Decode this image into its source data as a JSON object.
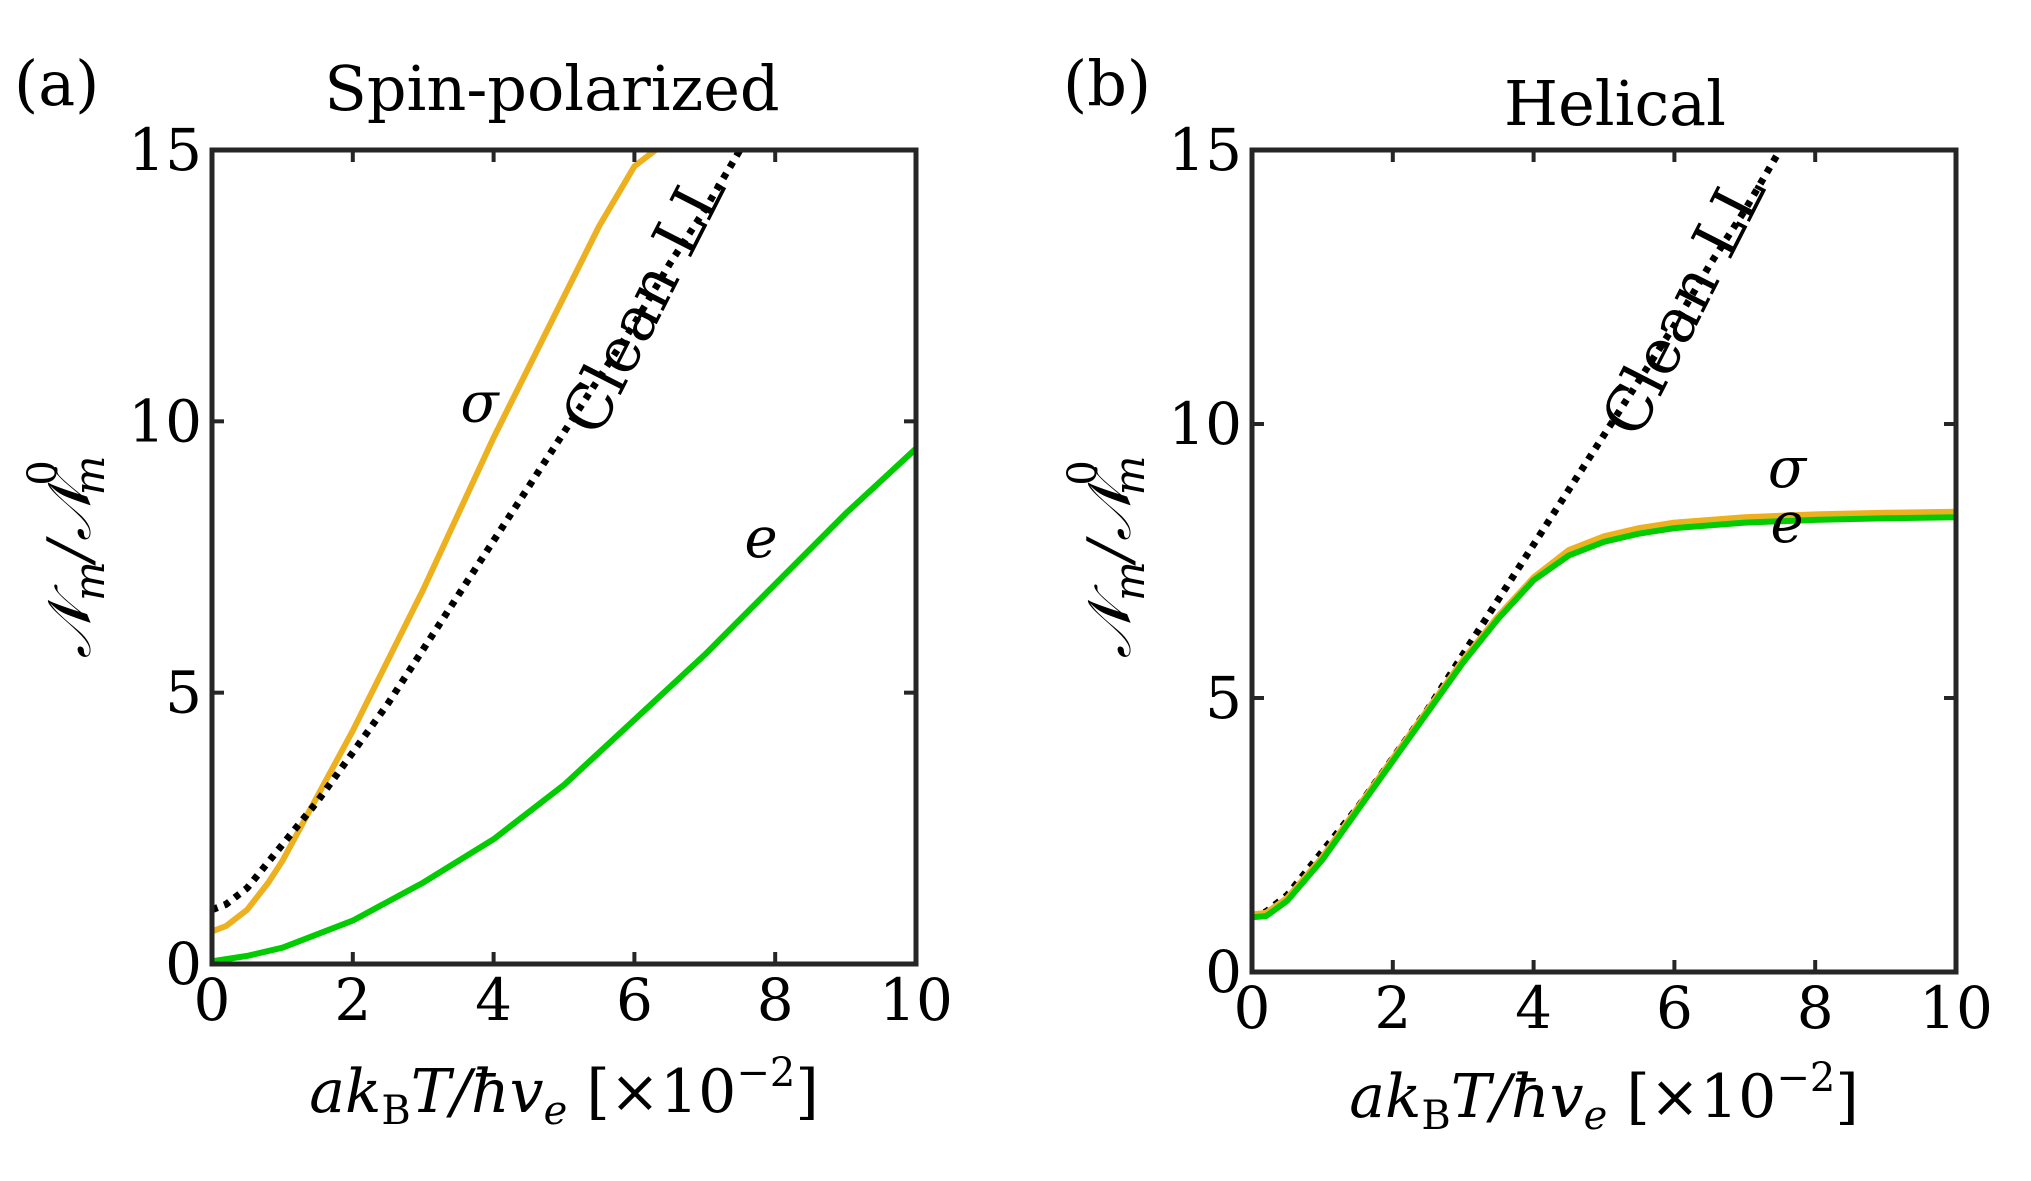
{
  "chart_data": [
    {
      "panel_label": "(a)",
      "title": "Spin-polarized",
      "type": "line",
      "xlabel": "ak_BT/ħv_e [×10^{-2}]",
      "ylabel": "𝒩_m/𝒩_m^0",
      "xlim": [
        0,
        10
      ],
      "ylim": [
        0,
        15
      ],
      "xticks": [
        "0",
        "2",
        "4",
        "6",
        "8",
        "10"
      ],
      "yticks": [
        "0",
        "5",
        "10",
        "15"
      ],
      "grid": false,
      "legend": "none",
      "series": [
        {
          "name": "σ",
          "color": "#edb120",
          "style": "solid",
          "x": [
            0,
            0.2,
            0.5,
            0.8,
            1.0,
            1.5,
            2.0,
            2.5,
            3.0,
            3.5,
            4.0,
            4.5,
            5.0,
            5.5,
            6.0,
            6.3
          ],
          "y": [
            0.6,
            0.7,
            1.0,
            1.5,
            1.9,
            3.1,
            4.3,
            5.6,
            6.9,
            8.3,
            9.7,
            11.0,
            12.3,
            13.6,
            14.7,
            15.0
          ]
        },
        {
          "name": "Clean LL",
          "color": "#000000",
          "style": "dotted",
          "x": [
            0,
            0.2,
            0.5,
            1.0,
            1.5,
            2.0,
            2.5,
            3.0,
            3.5,
            4.0,
            4.5,
            5.0,
            5.5,
            6.0,
            6.5,
            7.0,
            7.5
          ],
          "y": [
            1.0,
            1.1,
            1.4,
            2.2,
            3.0,
            3.9,
            4.8,
            5.8,
            6.8,
            7.8,
            8.8,
            9.8,
            10.8,
            11.8,
            12.9,
            13.9,
            15.0
          ]
        },
        {
          "name": "e",
          "color": "#00cc00",
          "style": "solid",
          "x": [
            0,
            0.5,
            1,
            2,
            3,
            4,
            5,
            6,
            7,
            8,
            9,
            10
          ],
          "y": [
            0.05,
            0.15,
            0.3,
            0.8,
            1.5,
            2.3,
            3.3,
            4.5,
            5.7,
            7.0,
            8.3,
            9.5
          ]
        }
      ],
      "annotations": [
        {
          "text": "σ",
          "x": 3.8,
          "y": 10.0
        },
        {
          "text": "e",
          "x": 7.8,
          "y": 7.5
        },
        {
          "text": "Clean LL",
          "x": 6.4,
          "y": 12.0,
          "angle": -63
        }
      ]
    },
    {
      "panel_label": "(b)",
      "title": "Helical",
      "type": "line",
      "xlabel": "ak_BT/ħv_e [×10^{-2}]",
      "ylabel": "𝒩_m/𝒩_m^0",
      "xlim": [
        0,
        10
      ],
      "ylim": [
        0,
        15
      ],
      "xticks": [
        "0",
        "2",
        "4",
        "6",
        "8",
        "10"
      ],
      "yticks": [
        "0",
        "5",
        "10",
        "15"
      ],
      "grid": false,
      "legend": "none",
      "series": [
        {
          "name": "Clean LL",
          "color": "#000000",
          "style": "dotted",
          "x": [
            0,
            0.2,
            0.5,
            1.0,
            1.5,
            2.0,
            2.5,
            3.0,
            3.5,
            4.0,
            4.5,
            5.0,
            5.5,
            6.0,
            6.5,
            7.0,
            7.5
          ],
          "y": [
            1.0,
            1.1,
            1.4,
            2.2,
            3.0,
            3.9,
            4.8,
            5.8,
            6.8,
            7.8,
            8.8,
            9.8,
            10.8,
            11.8,
            12.9,
            13.9,
            15.0
          ]
        },
        {
          "name": "σ",
          "color": "#edb120",
          "style": "solid",
          "x": [
            0,
            0.2,
            0.5,
            1.0,
            1.5,
            2.0,
            2.5,
            3.0,
            3.5,
            4.0,
            4.5,
            5.0,
            5.5,
            6.0,
            7.0,
            8.0,
            9.0,
            10.0
          ],
          "y": [
            1.05,
            1.08,
            1.35,
            2.1,
            3.0,
            3.9,
            4.8,
            5.7,
            6.5,
            7.2,
            7.7,
            7.95,
            8.1,
            8.2,
            8.3,
            8.35,
            8.38,
            8.4
          ]
        },
        {
          "name": "e",
          "color": "#00cc00",
          "style": "solid",
          "x": [
            0,
            0.2,
            0.5,
            1.0,
            1.5,
            2.0,
            2.5,
            3.0,
            3.5,
            4.0,
            4.5,
            5.0,
            5.5,
            6.0,
            7.0,
            8.0,
            9.0,
            10.0
          ],
          "y": [
            1.0,
            1.02,
            1.3,
            2.05,
            2.95,
            3.85,
            4.75,
            5.65,
            6.45,
            7.15,
            7.6,
            7.85,
            8.0,
            8.1,
            8.2,
            8.25,
            8.28,
            8.3
          ]
        }
      ],
      "annotations": [
        {
          "text": "σ",
          "x": 7.6,
          "y": 8.85
        },
        {
          "text": "e",
          "x": 7.6,
          "y": 7.85
        },
        {
          "text": "Clean LL",
          "x": 6.4,
          "y": 12.0,
          "angle": -63
        }
      ]
    }
  ]
}
